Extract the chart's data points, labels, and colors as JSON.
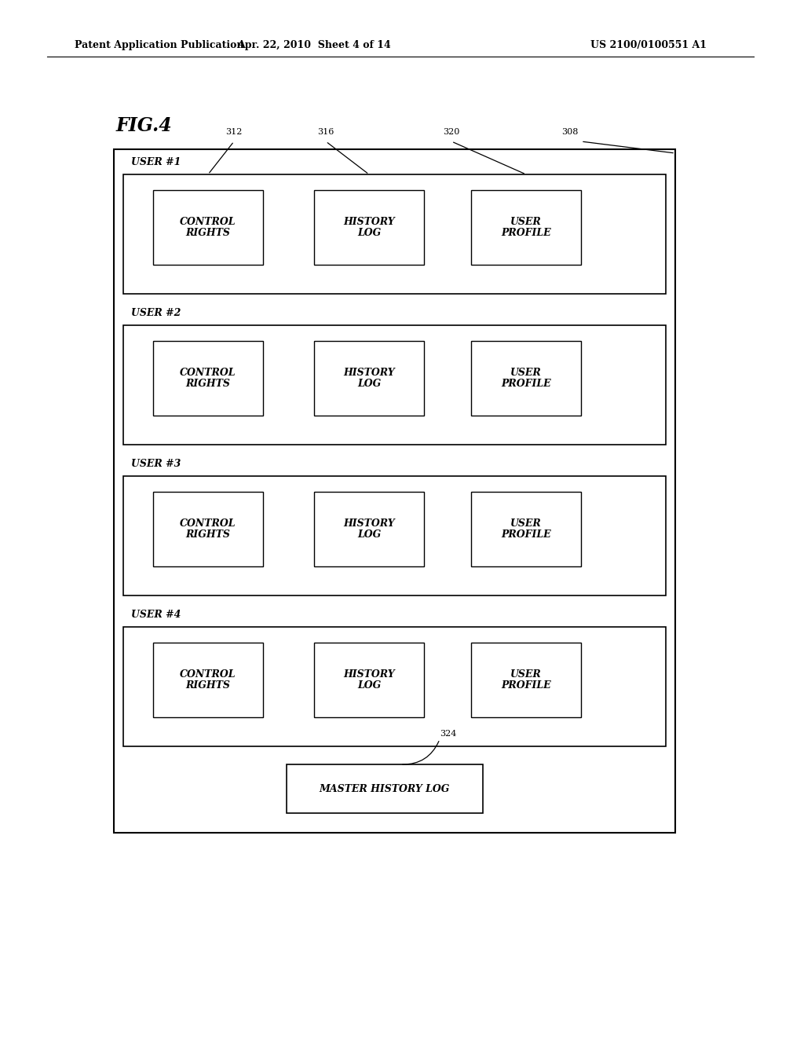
{
  "fig_label": "FIG.4",
  "header_left": "Patent Application Publication",
  "header_mid": "Apr. 22, 2010  Sheet 4 of 14",
  "header_right": "US 2100/0100551 A1",
  "bg_color": "#ffffff",
  "figsize": [
    10.24,
    13.2
  ],
  "dpi": 100,
  "users": [
    {
      "label": "USER #1"
    },
    {
      "label": "USER #2"
    },
    {
      "label": "USER #3"
    },
    {
      "label": "USER #4"
    }
  ],
  "inner_box_labels": [
    [
      "CONTROL",
      "RIGHTS"
    ],
    [
      "HISTORY",
      "LOG"
    ],
    [
      "USER",
      "PROFILE"
    ]
  ],
  "master_label": "MASTER HISTORY LOG",
  "ref_nums": [
    "312",
    "316",
    "320",
    "308"
  ],
  "ref_324": "324",
  "fontsize_header": 9,
  "fontsize_fig": 17,
  "fontsize_user": 9,
  "fontsize_inner": 9,
  "fontsize_ref": 8,
  "fontsize_master": 9
}
